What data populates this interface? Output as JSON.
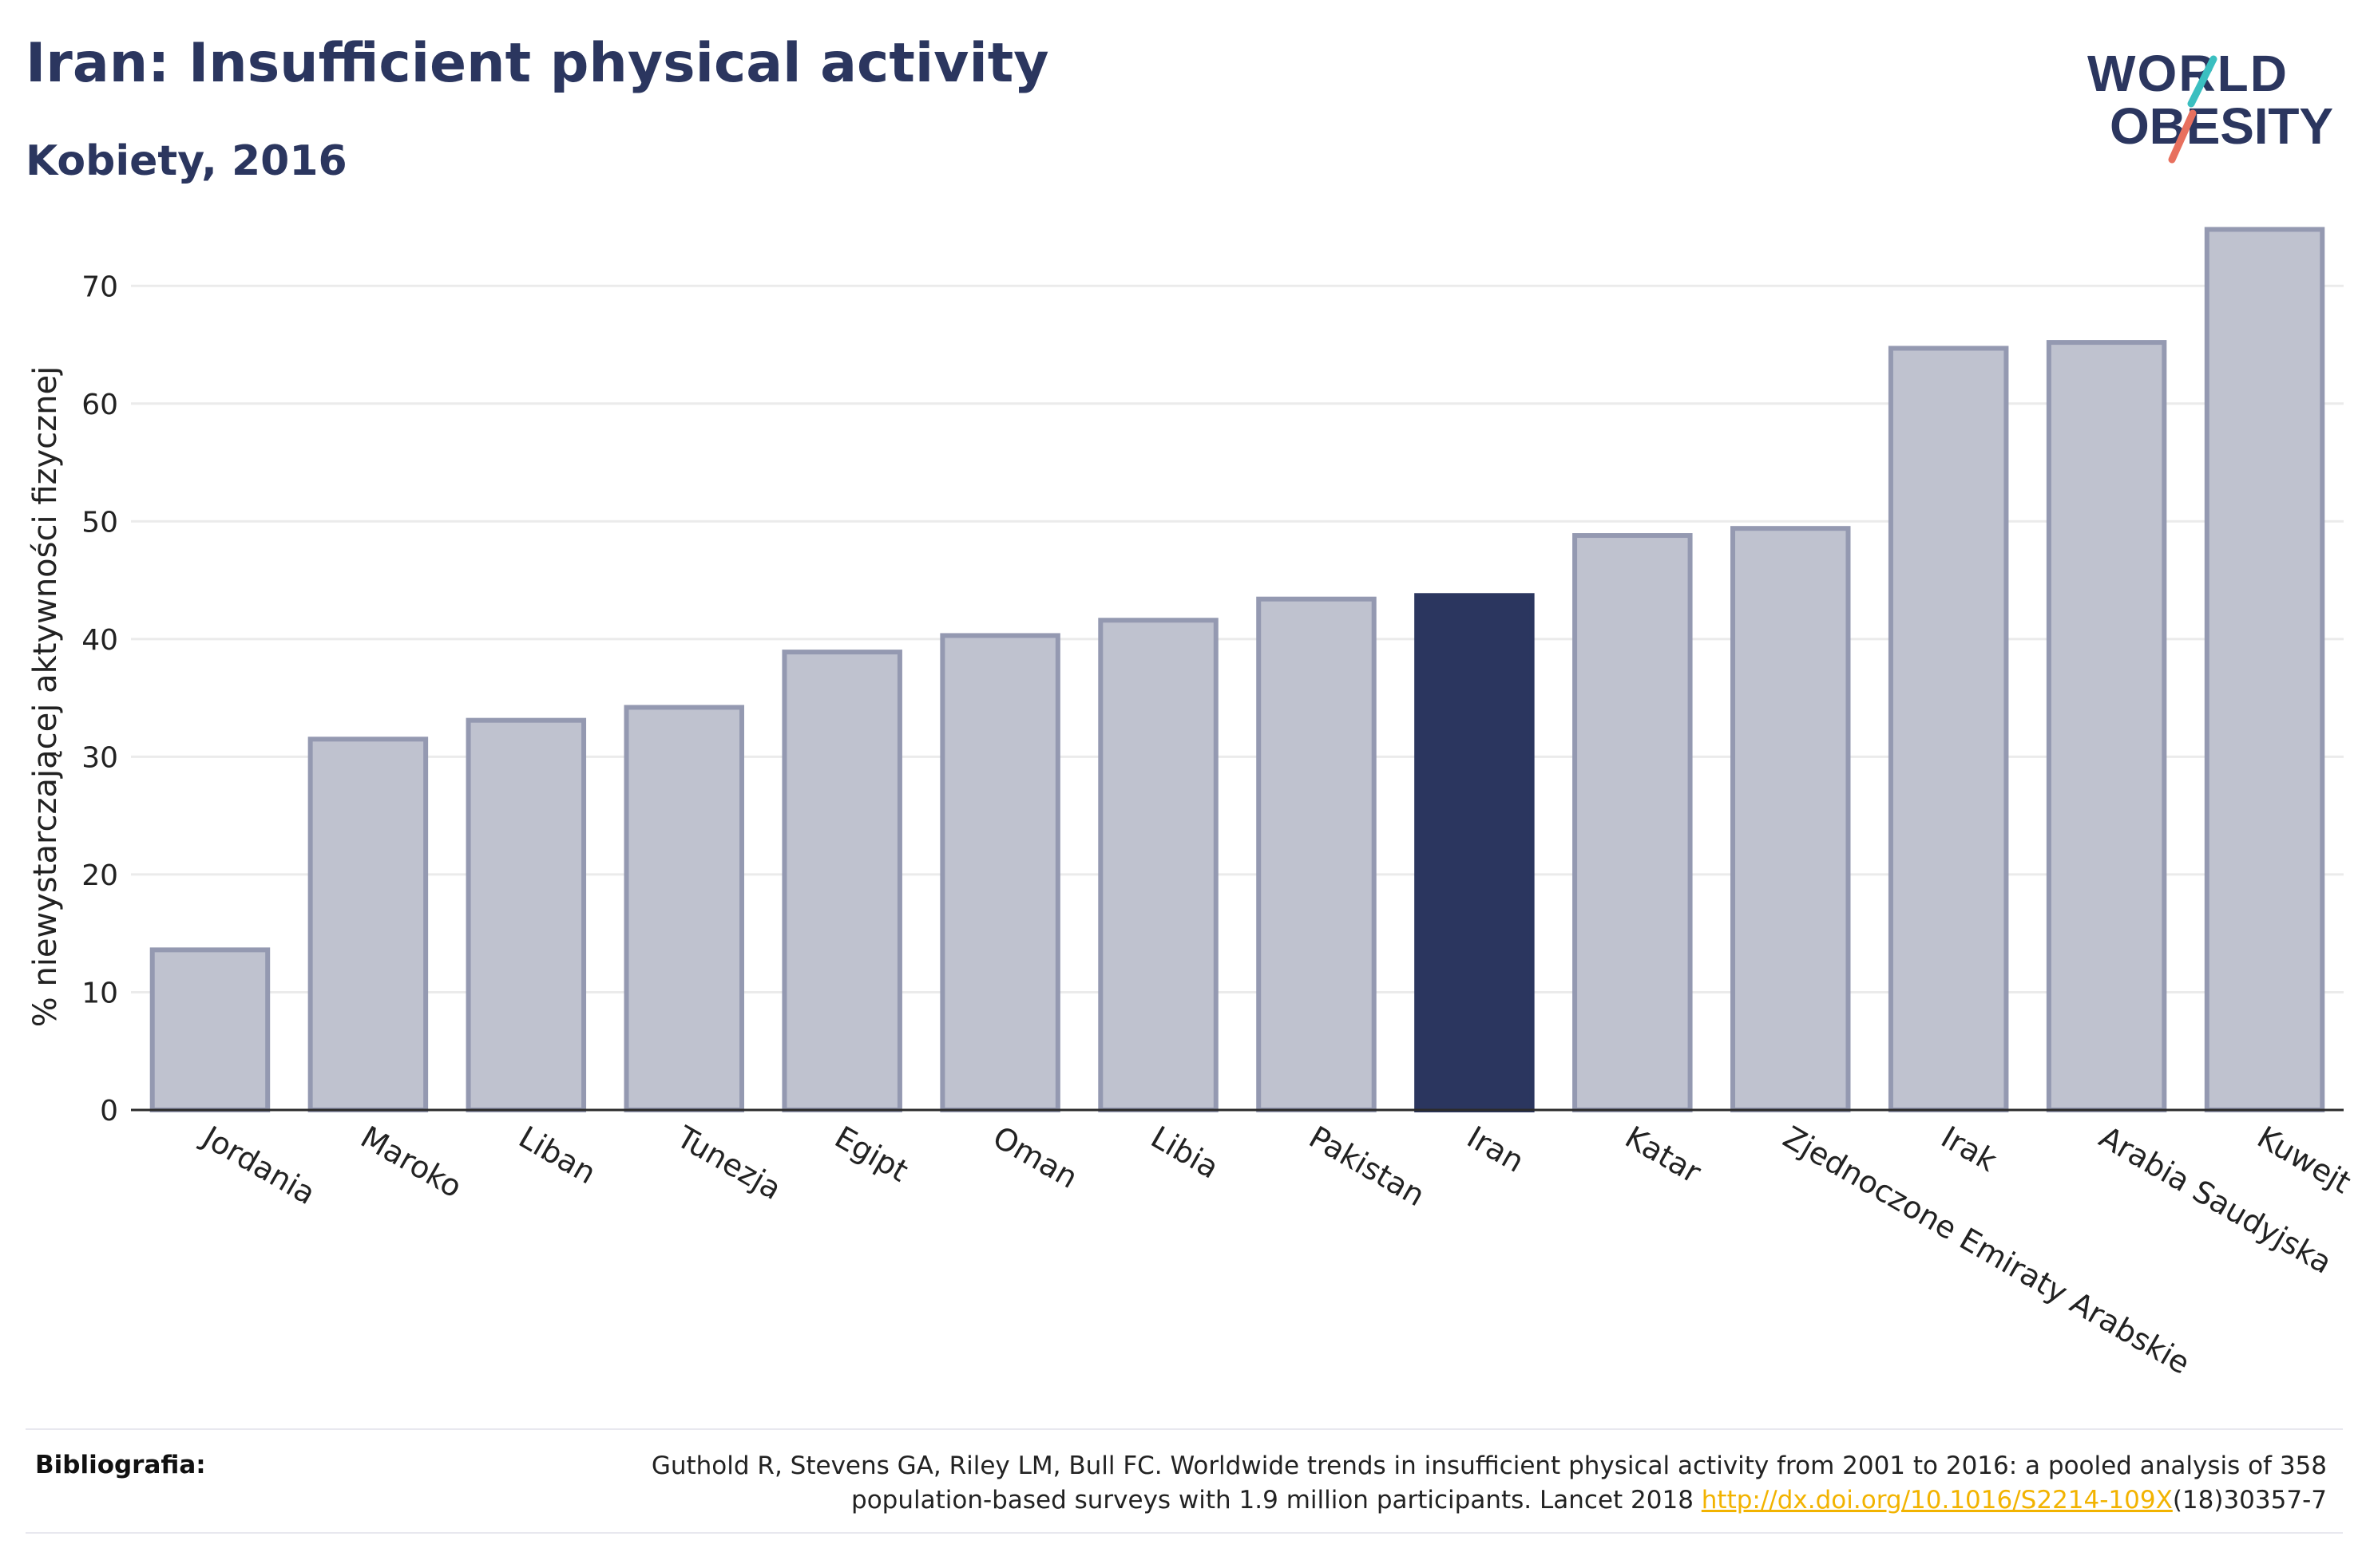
{
  "header": {
    "title": "Iran: Insufficient physical activity",
    "subtitle": "Kobiety, 2016"
  },
  "logo": {
    "line1": "WORLD",
    "line2": "OBESITY",
    "icon": "world-obesity-logo"
  },
  "chart_data": {
    "type": "bar",
    "title": "Iran: Insufficient physical activity",
    "subtitle": "Kobiety, 2016",
    "xlabel": "",
    "ylabel": "% niewystarczającej aktywności fizycznej",
    "ylim": [
      0,
      77
    ],
    "yticks": [
      0,
      10,
      20,
      30,
      40,
      50,
      60,
      70
    ],
    "grid": true,
    "categories": [
      "Jordania",
      "Maroko",
      "Liban",
      "Tunezja",
      "Egipt",
      "Oman",
      "Libia",
      "Pakistan",
      "Iran",
      "Katar",
      "Zjednoczone Emiraty Arabskie",
      "Irak",
      "Arabia Saudyjska",
      "Kuwejt"
    ],
    "values": [
      13.6,
      31.5,
      33.1,
      34.2,
      38.9,
      40.3,
      41.6,
      43.4,
      43.7,
      48.8,
      49.4,
      64.7,
      65.2,
      74.8
    ],
    "highlight": "Iran",
    "colors": {
      "bar": "#bfc2cf",
      "bar_border": "#9499b1",
      "highlight": "#2b365f",
      "grid": "#ebebeb",
      "axis": "#2b2b2b"
    }
  },
  "footer": {
    "label": "Bibliografia:",
    "text_line1": "Guthold R, Stevens GA, Riley LM, Bull FC. Worldwide trends in insufficient physical activity from 2001 to 2016: a pooled analysis of 358",
    "text_line2_prefix": "population-based surveys with 1.9 million participants. Lancet 2018 ",
    "link": "http://dx.doi.org/10.1016/S2214-109X",
    "text_line2_suffix": "(18)30357-7",
    "link_color": "#f2b300"
  }
}
